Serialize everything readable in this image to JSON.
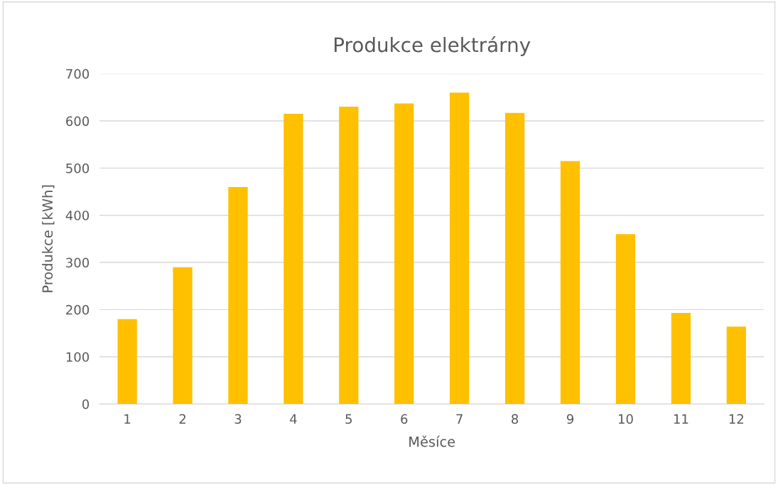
{
  "chart_data": {
    "type": "bar",
    "title": "Produkce elektrárny",
    "xlabel": "Měsíce",
    "ylabel": "Produkce [kWh]",
    "categories": [
      "1",
      "2",
      "3",
      "4",
      "5",
      "6",
      "7",
      "8",
      "9",
      "10",
      "11",
      "12"
    ],
    "values": [
      180,
      290,
      460,
      615,
      630,
      637,
      660,
      617,
      515,
      360,
      193,
      164
    ],
    "color": "#ffc000",
    "ylim": [
      0,
      700
    ],
    "yticks": [
      0,
      100,
      200,
      300,
      400,
      500,
      600,
      700
    ],
    "grid": "y",
    "legend": false
  }
}
